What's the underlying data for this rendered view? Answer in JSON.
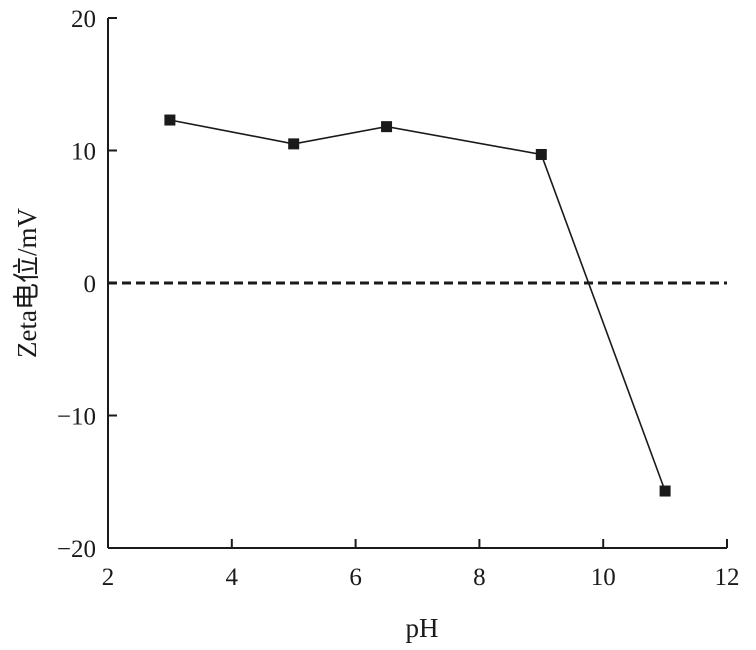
{
  "chart_data": {
    "type": "line",
    "xlabel": "pH",
    "ylabel": "Zeta电位/mV",
    "xlim": [
      2,
      12
    ],
    "ylim": [
      -20,
      20
    ],
    "xticks": [
      2,
      4,
      6,
      8,
      10,
      12
    ],
    "yticks": [
      -20,
      -10,
      0,
      10,
      20
    ],
    "xtick_labels": [
      "2",
      "4",
      "6",
      "8",
      "10",
      "12"
    ],
    "ytick_labels": [
      "−20",
      "−10",
      "0",
      "10",
      "20"
    ],
    "series": [
      {
        "x": [
          3,
          5,
          6.5,
          9,
          11
        ],
        "y": [
          12.3,
          10.5,
          11.8,
          9.7,
          -15.7
        ],
        "marker": "square",
        "color": "#1a1a1a"
      }
    ],
    "reference_lines": [
      {
        "axis": "y",
        "value": 0,
        "style": "dashed",
        "color": "#1a1a1a"
      }
    ],
    "grid": false,
    "legend": "none"
  }
}
